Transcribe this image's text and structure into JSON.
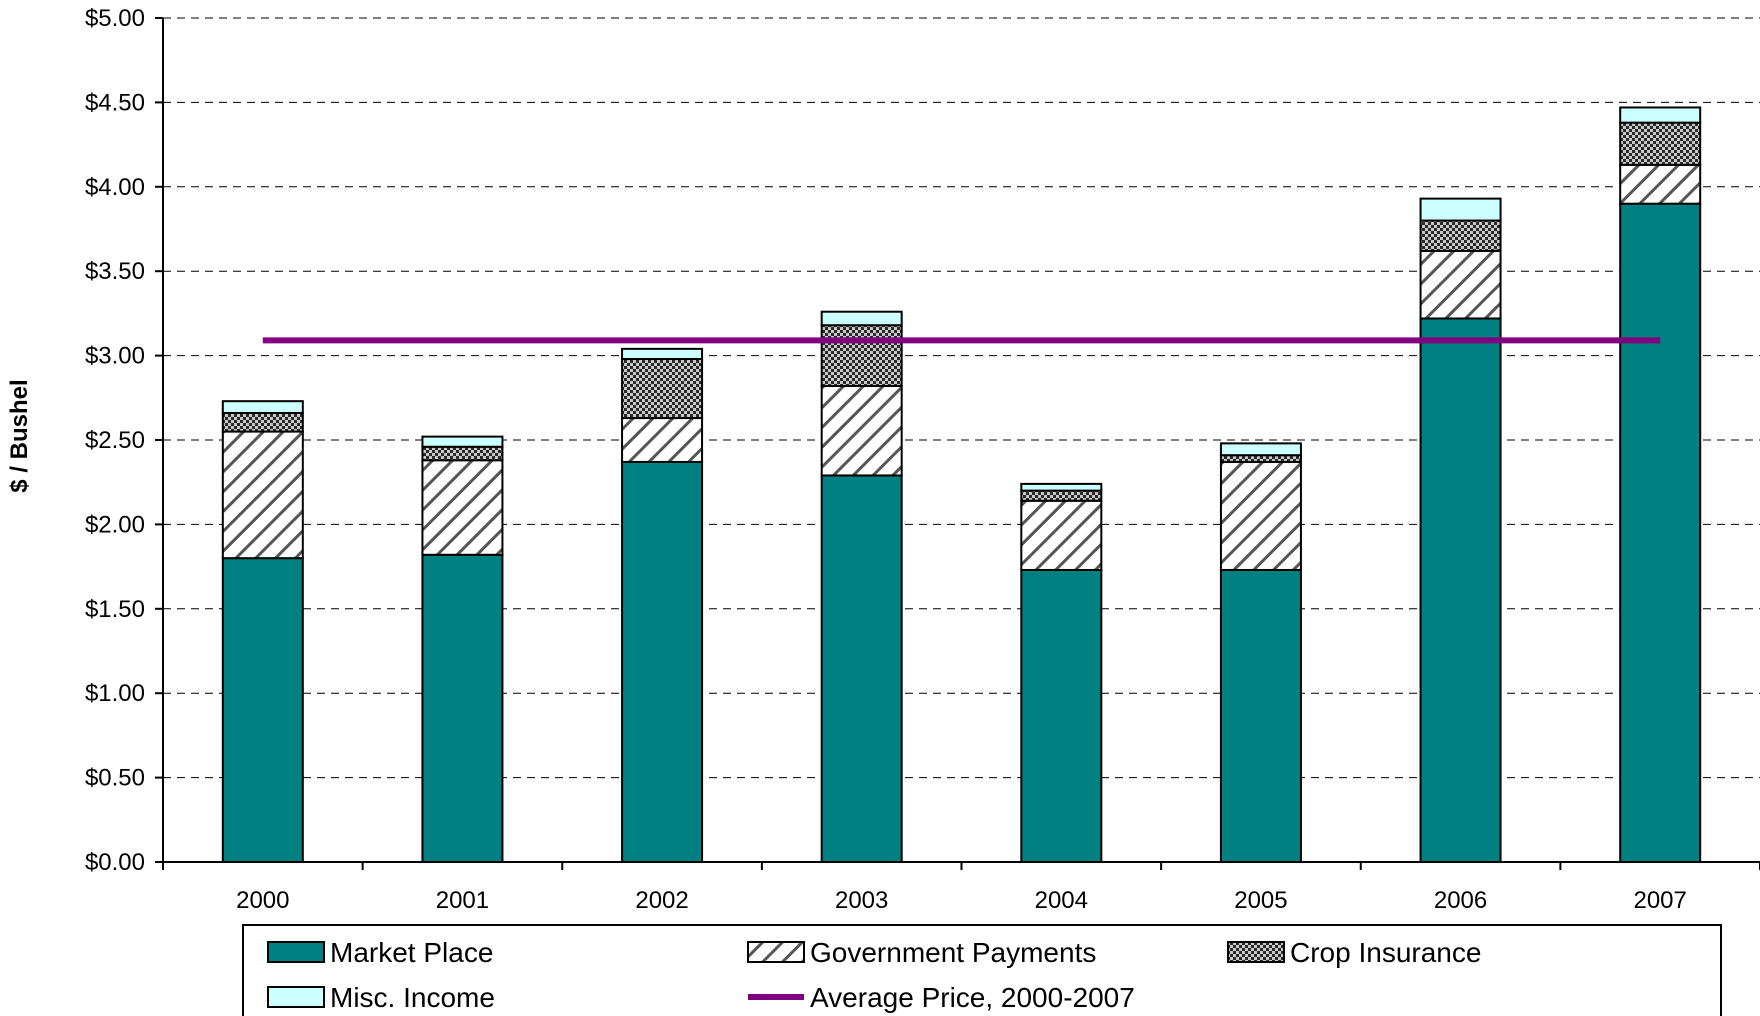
{
  "chart_data": {
    "type": "bar",
    "stacked": true,
    "ylabel": "$ / Bushel",
    "xlabel": "",
    "ylim": [
      0,
      5
    ],
    "y_ticks": [
      "$0.00",
      "$0.50",
      "$1.00",
      "$1.50",
      "$2.00",
      "$2.50",
      "$3.00",
      "$3.50",
      "$4.00",
      "$4.50",
      "$5.00"
    ],
    "y_tick_values": [
      0,
      0.5,
      1,
      1.5,
      2,
      2.5,
      3,
      3.5,
      4,
      4.5,
      5
    ],
    "grid": "horizontal dashed",
    "legend_position": "bottom",
    "categories": [
      "2000",
      "2001",
      "2002",
      "2003",
      "2004",
      "2005",
      "2006",
      "2007"
    ],
    "series": [
      {
        "name": "Market Place",
        "pattern": "solid",
        "color": "#008080",
        "values": [
          1.8,
          1.82,
          2.37,
          2.29,
          1.73,
          1.73,
          3.22,
          3.9
        ]
      },
      {
        "name": "Government Payments",
        "pattern": "diagonal-hatch",
        "color": "#ffffff",
        "values": [
          0.75,
          0.56,
          0.26,
          0.53,
          0.41,
          0.64,
          0.4,
          0.23
        ]
      },
      {
        "name": "Crop Insurance",
        "pattern": "checker",
        "color": "#888888",
        "values": [
          0.11,
          0.08,
          0.35,
          0.36,
          0.06,
          0.04,
          0.18,
          0.25
        ]
      },
      {
        "name": "Misc. Income",
        "pattern": "solid",
        "color": "#ccffff",
        "values": [
          0.07,
          0.06,
          0.06,
          0.08,
          0.04,
          0.07,
          0.13,
          0.09
        ]
      }
    ],
    "reference_line": {
      "name": "Average Price, 2000-2007",
      "value": 3.09,
      "color": "#800080"
    }
  }
}
